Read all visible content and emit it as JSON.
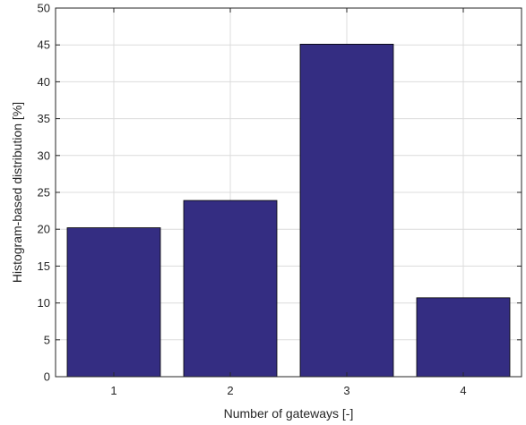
{
  "chart_data": {
    "type": "bar",
    "title": "",
    "xlabel": "Number of gateways [-]",
    "ylabel": "Histogram-based distribution [%]",
    "categories": [
      "1",
      "2",
      "3",
      "4"
    ],
    "values": [
      20.2,
      23.9,
      45.1,
      10.7
    ],
    "ylim": [
      0,
      50
    ],
    "yticks": [
      0,
      5,
      10,
      15,
      20,
      25,
      30,
      35,
      40,
      45,
      50
    ],
    "grid": true,
    "colors": {
      "bar": "#342D82",
      "bar_edge": "#000000",
      "grid": "#DCDCDC",
      "axis": "#262626"
    }
  }
}
